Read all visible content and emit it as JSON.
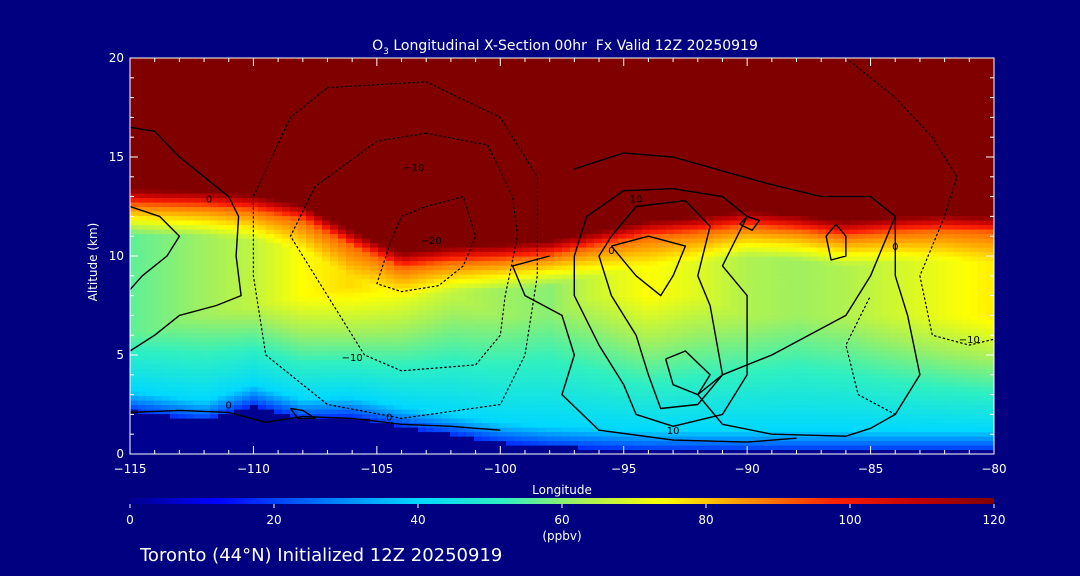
{
  "chart_data": {
    "type": "heatmap",
    "title_prefix": "O",
    "title_subscript": "3",
    "title_rest": " Longitudinal X-Section 00hr  Fx Valid 12Z 20250919",
    "xlabel": "Longitude",
    "ylabel": "Altitude (km)",
    "xlim": [
      -115,
      -80
    ],
    "ylim": [
      0,
      20
    ],
    "x_ticks": [
      -115,
      -110,
      -105,
      -100,
      -95,
      -90,
      -85,
      -80
    ],
    "x_tick_labels": [
      "−115",
      "−110",
      "−105",
      "−100",
      "−95",
      "−90",
      "−85",
      "−80"
    ],
    "y_ticks": [
      0,
      5,
      10,
      15,
      20
    ],
    "y_tick_labels": [
      "0",
      "5",
      "10",
      "15",
      "20"
    ],
    "colorbar": {
      "label": "(ppbv)",
      "range": [
        0,
        120
      ],
      "ticks": [
        0,
        20,
        40,
        60,
        80,
        100,
        120
      ],
      "tick_labels": [
        "0",
        "20",
        "40",
        "60",
        "80",
        "100",
        "120"
      ],
      "stops": [
        {
          "value": 0,
          "color": "#000090"
        },
        {
          "value": 12,
          "color": "#0000ff"
        },
        {
          "value": 26,
          "color": "#0070ff"
        },
        {
          "value": 40,
          "color": "#00d8ff"
        },
        {
          "value": 52,
          "color": "#30f0c0"
        },
        {
          "value": 62,
          "color": "#a0f060"
        },
        {
          "value": 74,
          "color": "#ffff00"
        },
        {
          "value": 86,
          "color": "#ff9000"
        },
        {
          "value": 98,
          "color": "#ff2000"
        },
        {
          "value": 110,
          "color": "#c00000"
        },
        {
          "value": 120,
          "color": "#800000"
        }
      ]
    },
    "profiles": [
      {
        "lon": -115,
        "tropopause_km": 12.6,
        "surface_km": 2.2,
        "peak_km": 6,
        "peak": 56
      },
      {
        "lon": -112,
        "tropopause_km": 12.5,
        "surface_km": 1.7,
        "peak_km": 7,
        "peak": 62
      },
      {
        "lon": -110,
        "tropopause_km": 12.3,
        "surface_km": 2.5,
        "peak_km": 7.5,
        "peak": 66
      },
      {
        "lon": -108,
        "tropopause_km": 11.8,
        "surface_km": 1.8,
        "peak_km": 8,
        "peak": 74
      },
      {
        "lon": -106,
        "tropopause_km": 10.5,
        "surface_km": 1.9,
        "peak_km": 8.5,
        "peak": 78
      },
      {
        "lon": -104,
        "tropopause_km": 9.4,
        "surface_km": 1.4,
        "peak_km": 8,
        "peak": 72
      },
      {
        "lon": -102,
        "tropopause_km": 9.7,
        "surface_km": 1.0,
        "peak_km": 8,
        "peak": 66
      },
      {
        "lon": -100,
        "tropopause_km": 9.8,
        "surface_km": 0.6,
        "peak_km": 7,
        "peak": 62
      },
      {
        "lon": -98,
        "tropopause_km": 10.0,
        "surface_km": 0.4,
        "peak_km": 7,
        "peak": 60
      },
      {
        "lon": -96,
        "tropopause_km": 10.5,
        "surface_km": 0.3,
        "peak_km": 8,
        "peak": 68
      },
      {
        "lon": -94,
        "tropopause_km": 11.0,
        "surface_km": 0.2,
        "peak_km": 8,
        "peak": 74
      },
      {
        "lon": -92,
        "tropopause_km": 11.2,
        "surface_km": 0.2,
        "peak_km": 8,
        "peak": 70
      },
      {
        "lon": -90,
        "tropopause_km": 11.5,
        "surface_km": 0.2,
        "peak_km": 7,
        "peak": 64
      },
      {
        "lon": -88,
        "tropopause_km": 11.3,
        "surface_km": 0.2,
        "peak_km": 7,
        "peak": 62
      },
      {
        "lon": -86,
        "tropopause_km": 11.0,
        "surface_km": 0.2,
        "peak_km": 7,
        "peak": 64
      },
      {
        "lon": -84,
        "tropopause_km": 11.2,
        "surface_km": 0.2,
        "peak_km": 7,
        "peak": 68
      },
      {
        "lon": -82,
        "tropopause_km": 11.3,
        "surface_km": 0.2,
        "peak_km": 7,
        "peak": 72
      },
      {
        "lon": -80,
        "tropopause_km": 11.2,
        "surface_km": 0.2,
        "peak_km": 7,
        "peak": 76
      }
    ],
    "contour_lines": [
      {
        "style": "solid",
        "points": [
          [
            -115,
            16.5
          ],
          [
            -114,
            16.3
          ],
          [
            -113,
            15
          ],
          [
            -112,
            14
          ],
          [
            -111,
            13
          ],
          [
            -110.6,
            12
          ],
          [
            -110.7,
            10
          ],
          [
            -110.5,
            8
          ],
          [
            -111.5,
            7.5
          ],
          [
            -113,
            7
          ],
          [
            -114,
            6
          ],
          [
            -115,
            5.2
          ]
        ]
      },
      {
        "style": "solid",
        "points": [
          [
            -115,
            12.5
          ],
          [
            -113.8,
            12
          ],
          [
            -113,
            11
          ],
          [
            -113.5,
            10
          ],
          [
            -114.5,
            9
          ],
          [
            -115,
            8.3
          ]
        ]
      },
      {
        "style": "solid",
        "points": [
          [
            -115,
            2.1
          ],
          [
            -113,
            2.2
          ],
          [
            -111,
            2.1
          ],
          [
            -109.5,
            1.6
          ],
          [
            -108,
            1.9
          ],
          [
            -106,
            1.8
          ],
          [
            -104,
            1.5
          ],
          [
            -102,
            1.4
          ],
          [
            -100,
            1.2
          ]
        ]
      },
      {
        "style": "solid",
        "points": [
          [
            -97,
            14.4
          ],
          [
            -95,
            15.2
          ],
          [
            -93,
            15
          ],
          [
            -91,
            14.3
          ],
          [
            -89,
            13.6
          ],
          [
            -87,
            13
          ],
          [
            -85,
            13
          ],
          [
            -84,
            12
          ],
          [
            -85,
            9
          ],
          [
            -86,
            7
          ],
          [
            -89,
            5
          ],
          [
            -91,
            4
          ],
          [
            -92,
            3
          ],
          [
            -91,
            1.5
          ],
          [
            -89,
            1
          ],
          [
            -86,
            0.9
          ],
          [
            -85,
            1.3
          ],
          [
            -84,
            2
          ],
          [
            -83,
            4
          ],
          [
            -83.5,
            7
          ],
          [
            -84,
            9
          ],
          [
            -84,
            12
          ]
        ]
      },
      {
        "style": "solid",
        "points": [
          [
            -98,
            10
          ],
          [
            -99.5,
            9.5
          ],
          [
            -99,
            8
          ],
          [
            -97.5,
            7
          ],
          [
            -97,
            5
          ],
          [
            -97.5,
            3
          ],
          [
            -96,
            1.2
          ],
          [
            -93,
            0.7
          ],
          [
            -90,
            0.6
          ],
          [
            -88,
            0.8
          ]
        ]
      },
      {
        "style": "solid",
        "points": [
          [
            -96.5,
            12
          ],
          [
            -95,
            13.3
          ],
          [
            -93,
            13.4
          ],
          [
            -91,
            13
          ],
          [
            -90,
            12
          ],
          [
            -91,
            9.5
          ],
          [
            -90,
            8
          ],
          [
            -90,
            4
          ],
          [
            -91,
            2
          ],
          [
            -93,
            1.4
          ],
          [
            -94.5,
            2
          ],
          [
            -95,
            3.5
          ],
          [
            -96,
            5.5
          ],
          [
            -97,
            8
          ],
          [
            -97,
            10
          ],
          [
            -96.5,
            12
          ]
        ]
      },
      {
        "style": "solid",
        "points": [
          [
            -95.5,
            11
          ],
          [
            -94.5,
            12.5
          ],
          [
            -92.5,
            12.8
          ],
          [
            -91.5,
            11.5
          ],
          [
            -92,
            9
          ],
          [
            -91.5,
            7.5
          ],
          [
            -91,
            4
          ],
          [
            -92,
            2.5
          ],
          [
            -93.5,
            2.3
          ],
          [
            -94,
            4
          ],
          [
            -94.5,
            6
          ],
          [
            -95.5,
            8
          ],
          [
            -96,
            10
          ],
          [
            -95.5,
            11
          ]
        ]
      },
      {
        "style": "solid",
        "points": [
          [
            -95.5,
            10.5
          ],
          [
            -94,
            11
          ],
          [
            -92.5,
            10.5
          ],
          [
            -93,
            9
          ],
          [
            -93.5,
            8
          ],
          [
            -94.5,
            9
          ],
          [
            -95.5,
            10.5
          ]
        ]
      },
      {
        "style": "solid",
        "points": [
          [
            -93.3,
            4.8
          ],
          [
            -92.5,
            5.2
          ],
          [
            -91.5,
            4
          ],
          [
            -92,
            3
          ],
          [
            -93,
            3.5
          ],
          [
            -93.3,
            4.8
          ]
        ]
      },
      {
        "style": "solid",
        "points": [
          [
            -86.4,
            11.6
          ],
          [
            -86,
            11
          ],
          [
            -86,
            10
          ],
          [
            -86.6,
            9.8
          ],
          [
            -86.8,
            11
          ],
          [
            -86.4,
            11.6
          ]
        ]
      },
      {
        "style": "solid",
        "points": [
          [
            -90,
            12
          ],
          [
            -89.5,
            11.8
          ],
          [
            -89.8,
            11.3
          ],
          [
            -90.3,
            11.6
          ],
          [
            -90,
            12
          ]
        ]
      },
      {
        "style": "solid",
        "points": [
          [
            -108.5,
            2.3
          ],
          [
            -108,
            2.2
          ],
          [
            -107.5,
            1.8
          ],
          [
            -108.2,
            1.8
          ],
          [
            -108.5,
            2.3
          ]
        ]
      },
      {
        "style": "dotted",
        "points": [
          [
            -103,
            12.5
          ],
          [
            -101.5,
            13
          ],
          [
            -101,
            11
          ],
          [
            -101.5,
            9.5
          ],
          [
            -102.5,
            8.5
          ],
          [
            -104,
            8.2
          ],
          [
            -105,
            8.6
          ],
          [
            -104.5,
            10.5
          ],
          [
            -104,
            12
          ],
          [
            -103,
            12.5
          ]
        ]
      },
      {
        "style": "dotted",
        "points": [
          [
            -103,
            16.2
          ],
          [
            -100.5,
            15.6
          ],
          [
            -99.5,
            13
          ],
          [
            -99.3,
            11
          ],
          [
            -99.8,
            8
          ],
          [
            -100,
            6
          ],
          [
            -101,
            4.5
          ],
          [
            -104,
            4.2
          ],
          [
            -105.5,
            5
          ],
          [
            -106.5,
            7
          ],
          [
            -107.5,
            9
          ],
          [
            -108.5,
            11
          ],
          [
            -107.5,
            13.5
          ],
          [
            -105,
            15.8
          ],
          [
            -103,
            16.2
          ]
        ]
      },
      {
        "style": "dotted",
        "points": [
          [
            -107,
            18.5
          ],
          [
            -103,
            18.8
          ],
          [
            -100,
            17
          ],
          [
            -98.5,
            14
          ],
          [
            -98.5,
            9
          ],
          [
            -99,
            5
          ],
          [
            -100,
            2.5
          ],
          [
            -104,
            1.8
          ],
          [
            -107,
            2.5
          ],
          [
            -109.5,
            5
          ],
          [
            -110,
            9
          ],
          [
            -110,
            13
          ],
          [
            -108.5,
            17
          ],
          [
            -107,
            18.5
          ]
        ]
      },
      {
        "style": "dotted",
        "points": [
          [
            -86,
            20
          ],
          [
            -84,
            18
          ],
          [
            -82.5,
            16
          ],
          [
            -81.5,
            14
          ],
          [
            -82,
            12
          ],
          [
            -83,
            9
          ],
          [
            -82.5,
            6
          ],
          [
            -81,
            5.5
          ],
          [
            -80,
            5.8
          ]
        ]
      },
      {
        "style": "dotted",
        "points": [
          [
            -84,
            2
          ],
          [
            -85.5,
            3
          ],
          [
            -86,
            5.5
          ],
          [
            -85,
            8
          ]
        ]
      }
    ],
    "contour_labels": [
      {
        "text": "−10",
        "lon": -103.5,
        "alt": 14.3
      },
      {
        "text": "−20",
        "lon": -102.8,
        "alt": 10.6
      },
      {
        "text": "−10",
        "lon": -106,
        "alt": 4.7
      },
      {
        "text": "0",
        "lon": -111.8,
        "alt": 12.7
      },
      {
        "text": "0",
        "lon": -111,
        "alt": 2.3
      },
      {
        "text": "0",
        "lon": -104.5,
        "alt": 1.7
      },
      {
        "text": "10",
        "lon": -94.5,
        "alt": 12.7
      },
      {
        "text": "0",
        "lon": -95.5,
        "alt": 10.1
      },
      {
        "text": "10",
        "lon": -93,
        "alt": 1.0
      },
      {
        "text": "0",
        "lon": -84,
        "alt": 10.3
      },
      {
        "text": "−10",
        "lon": -81,
        "alt": 5.6
      }
    ]
  },
  "footer": {
    "text": "Toronto (44°N) Initialized 12Z 20250919"
  }
}
